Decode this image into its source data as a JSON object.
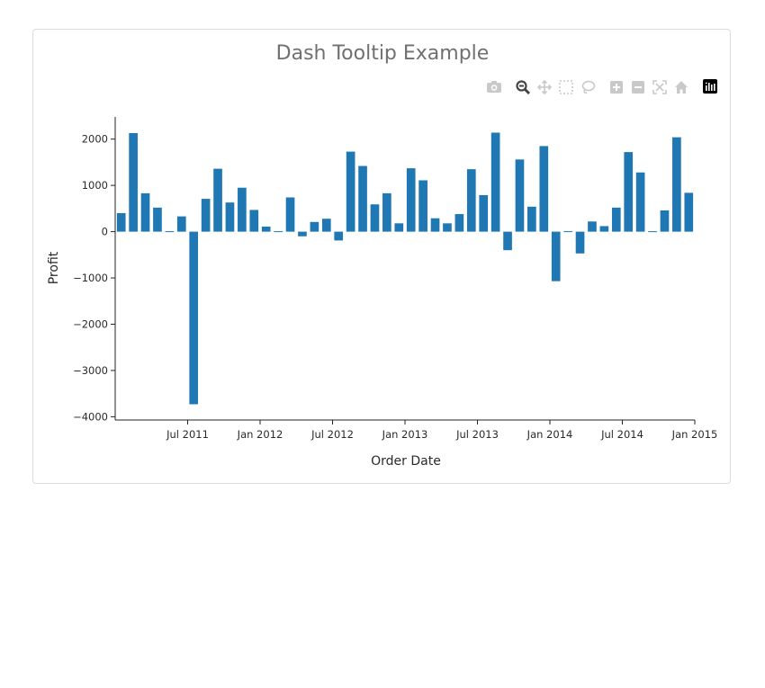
{
  "chart_data": {
    "type": "bar",
    "title": "Dash Tooltip Example",
    "xlabel": "Order Date",
    "ylabel": "Profit",
    "ylim": [
      -4070,
      2480
    ],
    "yticks": [
      2000,
      1000,
      0,
      -1000,
      -2000,
      -3000,
      -4000
    ],
    "ytick_labels": [
      "2000",
      "1000",
      "0",
      "−1000",
      "−2000",
      "−3000",
      "−4000"
    ],
    "xticks": [
      "2011-07",
      "2012-01",
      "2012-07",
      "2013-01",
      "2013-07",
      "2014-01",
      "2014-07",
      "2015-01"
    ],
    "xtick_labels": [
      "Jul 2011",
      "Jan 2012",
      "Jul 2012",
      "Jan 2013",
      "Jul 2013",
      "Jan 2014",
      "Jul 2014",
      "Jan 2015"
    ],
    "bar_color": "#1f77b4",
    "x": [
      "2011-01",
      "2011-02",
      "2011-03",
      "2011-04",
      "2011-05",
      "2011-06",
      "2011-07",
      "2011-08",
      "2011-09",
      "2011-10",
      "2011-11",
      "2011-12",
      "2012-01",
      "2012-02",
      "2012-03",
      "2012-04",
      "2012-05",
      "2012-06",
      "2012-07",
      "2012-08",
      "2012-09",
      "2012-10",
      "2012-11",
      "2012-12",
      "2013-01",
      "2013-02",
      "2013-03",
      "2013-04",
      "2013-05",
      "2013-06",
      "2013-07",
      "2013-08",
      "2013-09",
      "2013-10",
      "2013-11",
      "2013-12",
      "2014-01",
      "2014-02",
      "2014-03",
      "2014-04",
      "2014-05",
      "2014-06",
      "2014-07",
      "2014-08",
      "2014-09",
      "2014-10",
      "2014-11",
      "2014-12"
    ],
    "values": [
      400,
      2130,
      830,
      520,
      10,
      330,
      -3730,
      710,
      1360,
      630,
      950,
      470,
      110,
      0,
      740,
      -100,
      210,
      280,
      -190,
      1730,
      1420,
      590,
      830,
      180,
      1370,
      1110,
      290,
      180,
      380,
      1350,
      790,
      2140,
      -400,
      1560,
      540,
      1850,
      -1070,
      10,
      -470,
      220,
      120,
      520,
      1720,
      1280,
      10,
      460,
      2040,
      840
    ]
  },
  "modebar": {
    "buttons": [
      "camera-icon",
      "zoom-icon",
      "pan-icon",
      "box-select-icon",
      "lasso-select-icon",
      "zoom-in-icon",
      "zoom-out-icon",
      "autoscale-icon",
      "reset-axes-icon",
      "plotly-logo-icon"
    ]
  }
}
